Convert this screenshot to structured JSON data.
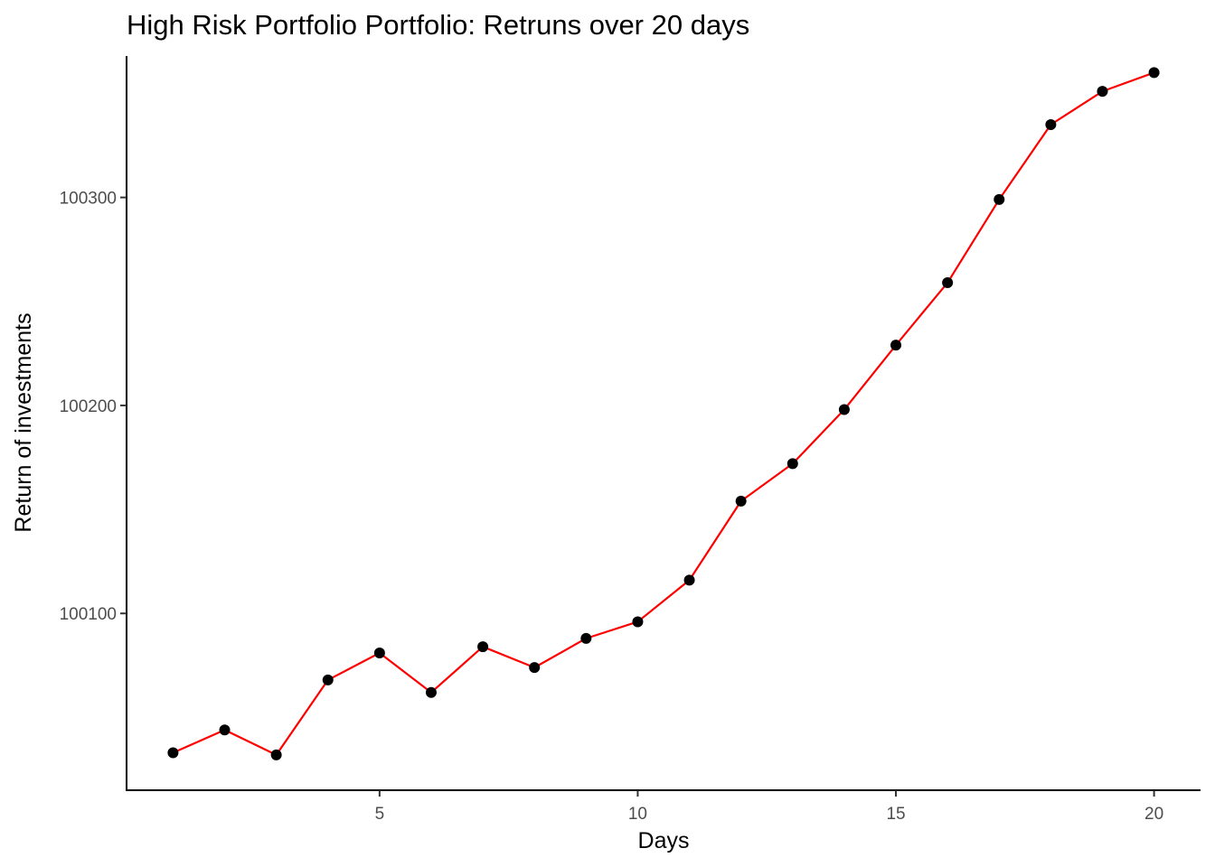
{
  "chart_data": {
    "type": "line",
    "title": "High Risk Portfolio Portfolio: Retruns over 20 days",
    "xlabel": "Days",
    "ylabel": "Return of investments",
    "xlim": [
      0.1,
      20.9
    ],
    "ylim": [
      100015,
      100368
    ],
    "x_ticks": [
      5,
      10,
      15,
      20
    ],
    "y_ticks": [
      100100,
      100200,
      100300
    ],
    "grid": false,
    "legend": "none",
    "line_color": "#ff0000",
    "point_color": "#000000",
    "series": [
      {
        "x": [
          1,
          2,
          3,
          4,
          5,
          6,
          7,
          8,
          9,
          10,
          11,
          12,
          13,
          14,
          15,
          16,
          17,
          18,
          19,
          20
        ],
        "y": [
          100033,
          100044,
          100032,
          100068,
          100081,
          100062,
          100084,
          100074,
          100088,
          100096,
          100116,
          100154,
          100172,
          100198,
          100229,
          100259,
          100299,
          100335,
          100351,
          100360
        ]
      }
    ]
  }
}
